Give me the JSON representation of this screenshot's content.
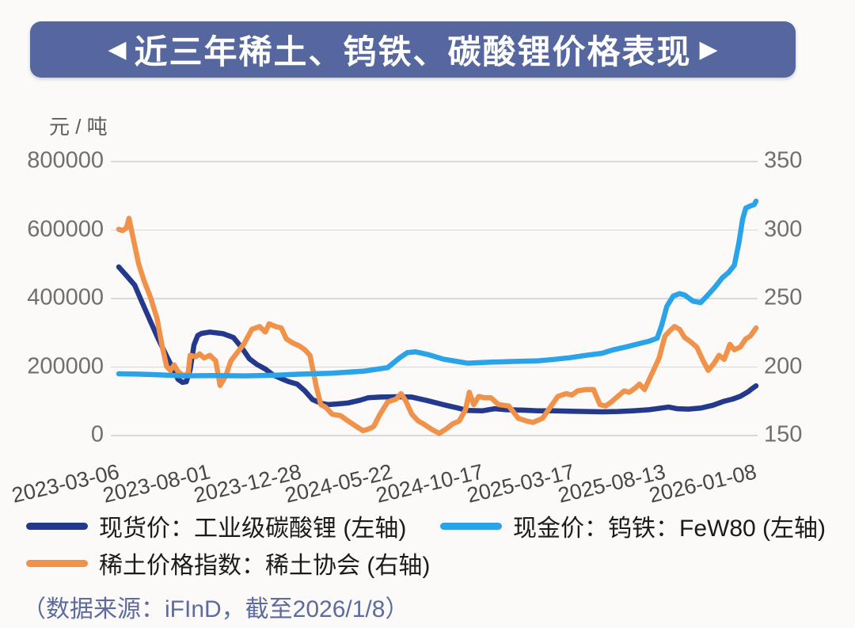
{
  "banner": {
    "left_arrow": "◀",
    "right_arrow": "▶",
    "title": "近三年稀土、钨铁、碳酸锂价格表现",
    "background_color": "#55679e",
    "text_color": "#ffffff"
  },
  "footer": {
    "source_note": "（数据来源：iFInD，截至2026/1/8）"
  },
  "legend": {
    "items": [
      {
        "label": "现货价：工业级碳酸锂 (左轴)",
        "color": "#24398b"
      },
      {
        "label": "现金价：钨铁：FeW80 (左轴)",
        "color": "#2aa3e8"
      },
      {
        "label": "稀土价格指数：稀土协会 (右轴)",
        "color": "#f0924a"
      }
    ]
  },
  "chart_data": {
    "type": "line",
    "title": "近三年稀土、钨铁、碳酸锂价格表现",
    "unit_label": "元 / 吨",
    "grid": "horizontal",
    "legend_position": "bottom",
    "grid_color": "#d9d9d9",
    "x_ticks": [
      "2023-03-06",
      "2023-08-01",
      "2023-12-28",
      "2024-05-22",
      "2024-10-17",
      "2025-03-17",
      "2025-08-13",
      "2026-01-08"
    ],
    "left_axis": {
      "min": 0,
      "max": 800000,
      "ticks": [
        800000,
        600000,
        400000,
        200000,
        0
      ],
      "label": "元 / 吨"
    },
    "right_axis": {
      "min": 150,
      "max": 350,
      "ticks": [
        350,
        300,
        250,
        200,
        150
      ]
    },
    "series": [
      {
        "name": "现货价：工业级碳酸锂 (左轴)",
        "axis": "left",
        "color": "#24398b",
        "points": [
          [
            0,
            490000
          ],
          [
            1.2,
            465000
          ],
          [
            2.5,
            437000
          ],
          [
            3.7,
            385000
          ],
          [
            5,
            330000
          ],
          [
            6.2,
            280000
          ],
          [
            7.5,
            230000
          ],
          [
            8.7,
            185000
          ],
          [
            9.3,
            162000
          ],
          [
            10,
            153000
          ],
          [
            10.6,
            155000
          ],
          [
            11.2,
            190000
          ],
          [
            11.8,
            262000
          ],
          [
            12.4,
            290000
          ],
          [
            13,
            296000
          ],
          [
            14.3,
            300000
          ],
          [
            15.5,
            297000
          ],
          [
            16.4,
            295000
          ],
          [
            18,
            284000
          ],
          [
            19.3,
            254000
          ],
          [
            20.5,
            222000
          ],
          [
            21.7,
            205000
          ],
          [
            23,
            192000
          ],
          [
            24.2,
            175000
          ],
          [
            25.5,
            164000
          ],
          [
            26.7,
            155000
          ],
          [
            28,
            148000
          ],
          [
            29.2,
            128000
          ],
          [
            30.4,
            103000
          ],
          [
            31.7,
            92000
          ],
          [
            32.9,
            88000
          ],
          [
            34.2,
            90000
          ],
          [
            36,
            93000
          ],
          [
            37.9,
            101000
          ],
          [
            39.1,
            108000
          ],
          [
            41,
            110000
          ],
          [
            43.5,
            111000
          ],
          [
            46,
            110000
          ],
          [
            48.4,
            100000
          ],
          [
            50.9,
            88000
          ],
          [
            52.8,
            80000
          ],
          [
            54.7,
            71000
          ],
          [
            57.1,
            70000
          ],
          [
            59,
            76000
          ],
          [
            60.9,
            73000
          ],
          [
            63.4,
            72000
          ],
          [
            65.8,
            70000
          ],
          [
            68.3,
            70000
          ],
          [
            70.8,
            69000
          ],
          [
            73.3,
            68000
          ],
          [
            75.8,
            67000
          ],
          [
            78.3,
            68000
          ],
          [
            80.7,
            70000
          ],
          [
            83.2,
            73000
          ],
          [
            85.1,
            78000
          ],
          [
            86.3,
            81000
          ],
          [
            87.6,
            76000
          ],
          [
            89.4,
            75000
          ],
          [
            91.3,
            78000
          ],
          [
            93.2,
            86000
          ],
          [
            95,
            98000
          ],
          [
            96.3,
            104000
          ],
          [
            97.5,
            112000
          ],
          [
            98.8,
            126000
          ],
          [
            99.4,
            135000
          ],
          [
            100,
            143000
          ]
        ]
      },
      {
        "name": "稀土价格指数：稀土协会 (右轴)",
        "axis": "right",
        "color": "#f0924a",
        "points": [
          [
            0,
            300
          ],
          [
            0.6,
            299
          ],
          [
            1.2,
            301
          ],
          [
            1.6,
            308
          ],
          [
            2.2,
            295
          ],
          [
            3.1,
            275
          ],
          [
            4,
            262
          ],
          [
            5,
            250
          ],
          [
            6,
            235
          ],
          [
            6.8,
            215
          ],
          [
            7.5,
            200
          ],
          [
            8.1,
            197
          ],
          [
            8.7,
            201
          ],
          [
            9.3,
            196
          ],
          [
            10.2,
            193
          ],
          [
            10.9,
            195
          ],
          [
            11.2,
            208
          ],
          [
            12.1,
            207
          ],
          [
            12.7,
            209
          ],
          [
            13.4,
            206
          ],
          [
            14.3,
            208
          ],
          [
            15.2,
            204
          ],
          [
            15.9,
            186
          ],
          [
            16.8,
            193
          ],
          [
            17.6,
            204
          ],
          [
            18.6,
            210
          ],
          [
            19.6,
            216
          ],
          [
            20.9,
            227
          ],
          [
            22.1,
            229
          ],
          [
            23,
            225
          ],
          [
            23.6,
            231
          ],
          [
            24.6,
            229
          ],
          [
            25.5,
            228
          ],
          [
            26.3,
            220
          ],
          [
            27.3,
            217
          ],
          [
            28.3,
            215
          ],
          [
            29.2,
            212
          ],
          [
            30,
            208
          ],
          [
            31,
            185
          ],
          [
            31.7,
            172
          ],
          [
            32.5,
            170
          ],
          [
            33.5,
            165
          ],
          [
            34.8,
            164
          ],
          [
            36,
            160
          ],
          [
            37.3,
            156
          ],
          [
            38.3,
            153
          ],
          [
            39.1,
            154
          ],
          [
            40,
            156
          ],
          [
            41,
            165
          ],
          [
            42.2,
            174
          ],
          [
            43.5,
            176
          ],
          [
            44.3,
            180
          ],
          [
            45,
            175
          ],
          [
            46,
            165
          ],
          [
            47,
            160
          ],
          [
            47.8,
            158
          ],
          [
            49.1,
            154
          ],
          [
            50.3,
            151
          ],
          [
            51.6,
            155
          ],
          [
            52.4,
            158
          ],
          [
            53.4,
            160
          ],
          [
            54.4,
            168
          ],
          [
            55,
            181
          ],
          [
            55.7,
            172
          ],
          [
            56.5,
            178
          ],
          [
            57.4,
            177
          ],
          [
            58.4,
            177
          ],
          [
            59.6,
            172
          ],
          [
            61.2,
            171
          ],
          [
            62.7,
            162
          ],
          [
            64,
            160
          ],
          [
            65,
            159
          ],
          [
            66.5,
            162
          ],
          [
            67.7,
            170
          ],
          [
            68.9,
            178
          ],
          [
            70.2,
            180
          ],
          [
            71.1,
            179
          ],
          [
            72,
            182
          ],
          [
            73.3,
            183
          ],
          [
            74.5,
            183
          ],
          [
            75.5,
            172
          ],
          [
            76.4,
            171
          ],
          [
            77.3,
            174
          ],
          [
            78.3,
            178
          ],
          [
            79.3,
            182
          ],
          [
            80.1,
            181
          ],
          [
            81,
            184
          ],
          [
            81.7,
            187
          ],
          [
            82.5,
            183
          ],
          [
            83.2,
            190
          ],
          [
            84.1,
            199
          ],
          [
            84.8,
            206
          ],
          [
            85.7,
            222
          ],
          [
            86.5,
            226
          ],
          [
            87.2,
            229
          ],
          [
            88,
            227
          ],
          [
            88.8,
            221
          ],
          [
            89.7,
            218
          ],
          [
            90.7,
            214
          ],
          [
            91.7,
            204
          ],
          [
            92.5,
            197
          ],
          [
            93.4,
            202
          ],
          [
            94.2,
            208
          ],
          [
            95,
            205
          ],
          [
            95.9,
            216
          ],
          [
            96.6,
            212
          ],
          [
            97.5,
            214
          ],
          [
            98.4,
            220
          ],
          [
            99.1,
            222
          ],
          [
            100,
            228
          ]
        ]
      },
      {
        "name": "现金价：钨铁：FeW80 (左轴)",
        "axis": "left",
        "color": "#2aa3e8",
        "points": [
          [
            0,
            178000
          ],
          [
            3,
            177000
          ],
          [
            6.2,
            175000
          ],
          [
            9.9,
            172000
          ],
          [
            14.9,
            173000
          ],
          [
            19.9,
            172000
          ],
          [
            24.8,
            174000
          ],
          [
            28.6,
            177000
          ],
          [
            33.5,
            180000
          ],
          [
            38.5,
            186000
          ],
          [
            42.2,
            196000
          ],
          [
            44.1,
            225000
          ],
          [
            45.3,
            240000
          ],
          [
            46.6,
            242000
          ],
          [
            48.4,
            235000
          ],
          [
            50.9,
            221000
          ],
          [
            52.8,
            215000
          ],
          [
            54.7,
            209000
          ],
          [
            58.4,
            212000
          ],
          [
            62.1,
            214000
          ],
          [
            65.8,
            216000
          ],
          [
            68.3,
            220000
          ],
          [
            70.8,
            225000
          ],
          [
            73.3,
            232000
          ],
          [
            75.8,
            238000
          ],
          [
            77.6,
            248000
          ],
          [
            79.5,
            256000
          ],
          [
            81.4,
            265000
          ],
          [
            83.2,
            273000
          ],
          [
            84.5,
            282000
          ],
          [
            85.2,
            320000
          ],
          [
            86,
            375000
          ],
          [
            87,
            405000
          ],
          [
            88,
            412000
          ],
          [
            88.8,
            408000
          ],
          [
            90.1,
            390000
          ],
          [
            91.3,
            386000
          ],
          [
            92.3,
            405000
          ],
          [
            93.5,
            430000
          ],
          [
            94.7,
            458000
          ],
          [
            95.7,
            474000
          ],
          [
            96.6,
            495000
          ],
          [
            97.3,
            560000
          ],
          [
            97.9,
            630000
          ],
          [
            98.4,
            662000
          ],
          [
            99.1,
            668000
          ],
          [
            99.7,
            672000
          ],
          [
            100,
            682000
          ]
        ]
      }
    ]
  }
}
